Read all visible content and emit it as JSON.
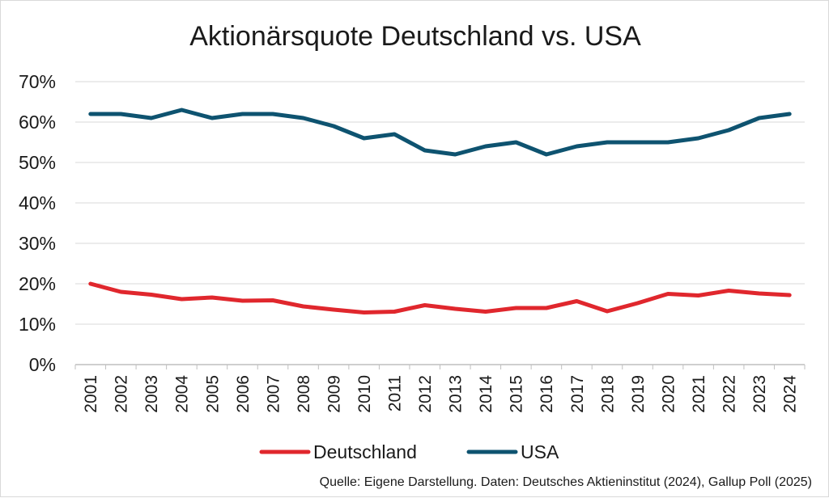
{
  "chart_data": {
    "type": "line",
    "title": "Aktionärsquote Deutschland vs. USA",
    "categories": [
      "2001",
      "2002",
      "2003",
      "2004",
      "2005",
      "2006",
      "2007",
      "2008",
      "2009",
      "2010",
      "2011",
      "2012",
      "2013",
      "2014",
      "2015",
      "2016",
      "2017",
      "2018",
      "2019",
      "2020",
      "2021",
      "2022",
      "2023",
      "2024"
    ],
    "series": [
      {
        "name": "Deutschland",
        "color": "#e0272d",
        "values": [
          20.0,
          18.0,
          17.3,
          16.2,
          16.6,
          15.8,
          15.9,
          14.4,
          13.6,
          12.9,
          13.1,
          14.7,
          13.8,
          13.1,
          14.0,
          14.0,
          15.7,
          13.2,
          15.2,
          17.5,
          17.1,
          18.3,
          17.6,
          17.2
        ]
      },
      {
        "name": "USA",
        "color": "#0e5370",
        "values": [
          62,
          62,
          61,
          63,
          61,
          62,
          62,
          61,
          59,
          56,
          57,
          53,
          52,
          54,
          55,
          52,
          54,
          55,
          55,
          55,
          56,
          58,
          61,
          62
        ]
      }
    ],
    "ylim": [
      0,
      70
    ],
    "yticks": [
      0,
      10,
      20,
      30,
      40,
      50,
      60,
      70
    ],
    "ytick_labels": [
      "0%",
      "10%",
      "20%",
      "30%",
      "40%",
      "50%",
      "60%",
      "70%"
    ],
    "ylabel": "",
    "xlabel": "",
    "grid": true,
    "legend_position": "bottom",
    "source": "Quelle: Eigene Darstellung. Daten: Deutsches Aktieninstitut (2024), Gallup Poll (2025)"
  }
}
